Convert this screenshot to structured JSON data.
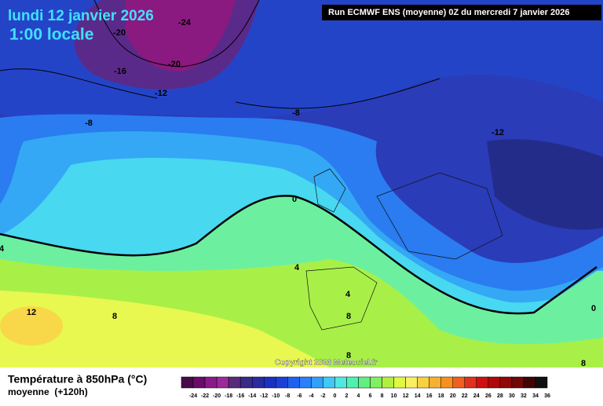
{
  "header": {
    "title": "lundi 12 janvier 2026",
    "time": "1:00 locale",
    "run": "Run ECMWF ENS (moyenne) 0Z du mercredi 7 janvier 2026"
  },
  "map": {
    "contour_labels": [
      -24,
      -20,
      -20,
      -16,
      -12,
      -8,
      -8,
      -12,
      0,
      4,
      4,
      4,
      12,
      8,
      8,
      8,
      8,
      0
    ],
    "copyright": "Copyright 2026 Meteociel.fr"
  },
  "legend": {
    "title": "Température à 850hPa (°C)",
    "subtitle": "moyenne  (+120h)",
    "values": [
      -24,
      -22,
      -20,
      -18,
      -16,
      -14,
      -12,
      -10,
      -8,
      -6,
      -4,
      -2,
      0,
      2,
      4,
      6,
      8,
      10,
      12,
      14,
      16,
      18,
      20,
      22,
      24,
      26,
      28,
      30,
      32,
      34,
      36
    ],
    "colors": [
      "#4a0a4a",
      "#6a0a6a",
      "#8a1a8a",
      "#9a2a9a",
      "#5a2a7a",
      "#3a2a8a",
      "#2a2aa0",
      "#1a30c0",
      "#1a40d8",
      "#2060f0",
      "#2a80f8",
      "#30a0f8",
      "#40c8f8",
      "#50e8e0",
      "#50f0b0",
      "#60f080",
      "#80f060",
      "#b0f040",
      "#e0f840",
      "#f8f060",
      "#f8d040",
      "#f8b030",
      "#f89020",
      "#f06020",
      "#e03020",
      "#d01010",
      "#b00808",
      "#900808",
      "#700808",
      "#400404",
      "#101010"
    ]
  }
}
